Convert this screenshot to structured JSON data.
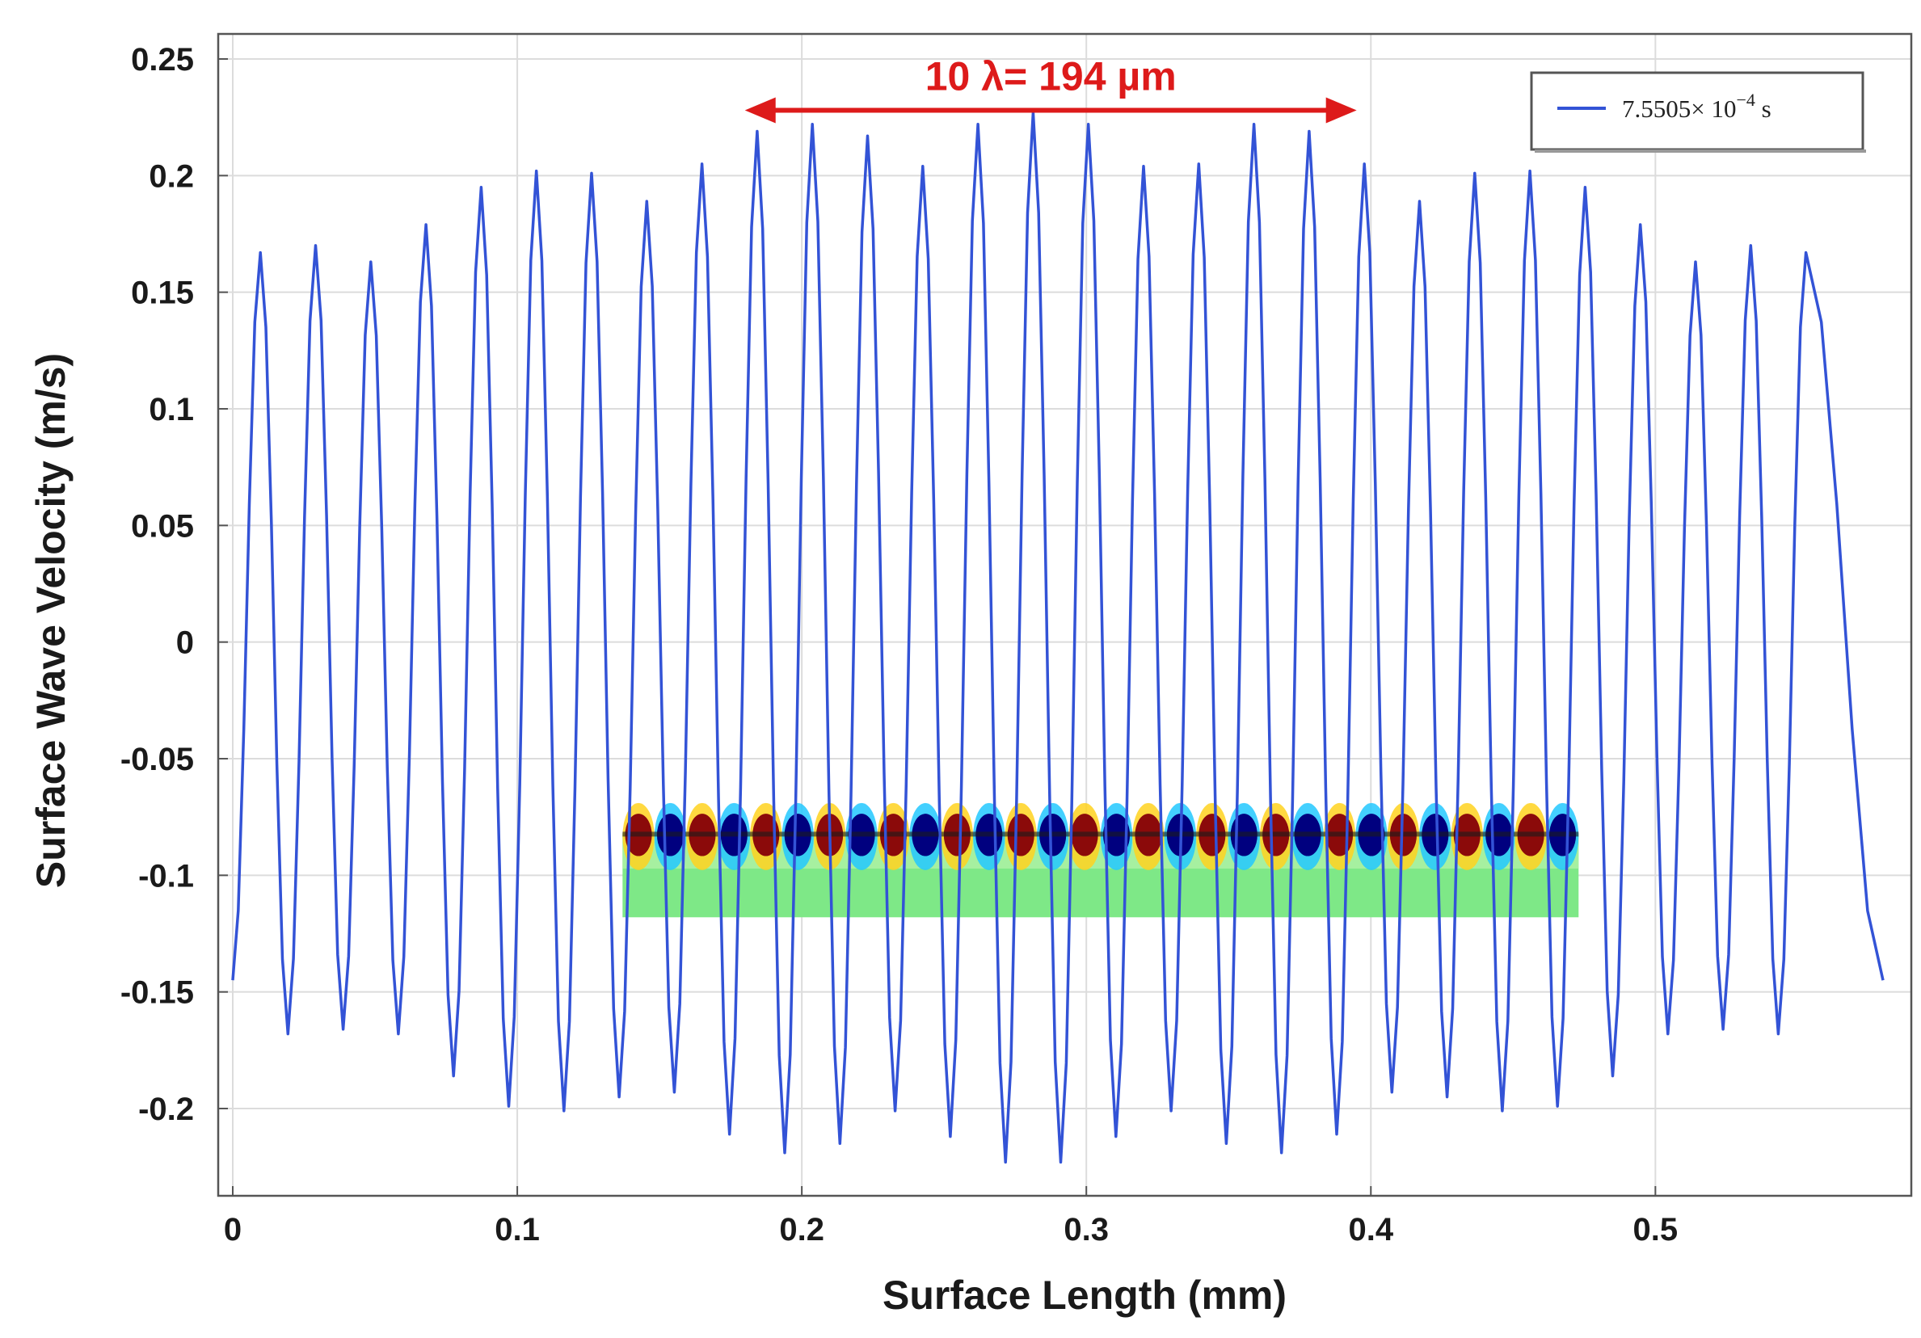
{
  "chart_data": {
    "type": "line",
    "title": "",
    "xlabel": "Surface Length (mm)",
    "ylabel": "Surface Wave Velocity (m/s)",
    "xlim": [
      0,
      0.58
    ],
    "ylim": [
      -0.23,
      0.25
    ],
    "grid": true,
    "x_ticks": [
      0,
      0.1,
      0.2,
      0.3,
      0.4,
      0.5
    ],
    "x_tick_labels": [
      "0",
      "0.1",
      "0.2",
      "0.3",
      "0.4",
      "0.5"
    ],
    "y_ticks": [
      -0.2,
      -0.15,
      -0.1,
      -0.05,
      0,
      0.05,
      0.1,
      0.15,
      0.2,
      0.25
    ],
    "y_tick_labels": [
      "-0.2",
      "-0.15",
      "-0.1",
      "-0.05",
      "0",
      "0.05",
      "0.1",
      "0.15",
      "0.2",
      "0.25"
    ],
    "legend": {
      "placement": "top-right",
      "entries": [
        {
          "label_main": "7.5505×",
          "label_base": "10",
          "label_exp": "−4",
          "label_unit": "s",
          "color": "#3353d6"
        }
      ]
    },
    "series": [
      {
        "name": "7.5505×10^-4 s",
        "color": "#3353d6",
        "wavelength_mm": 0.0194,
        "x_start": 0,
        "x_end": 0.58,
        "start_value": -0.145,
        "peaks": [
          0.167,
          0.17,
          0.163,
          0.179,
          0.195,
          0.202,
          0.201,
          0.189,
          0.205,
          0.219,
          0.222,
          0.217,
          0.204,
          0.222,
          0.227,
          0.222,
          0.204,
          0.205,
          0.222,
          0.219,
          0.205,
          0.189,
          0.201,
          0.202,
          0.195,
          0.179,
          0.163,
          0.17,
          0.167
        ],
        "troughs": [
          -0.168,
          -0.166,
          -0.168,
          -0.186,
          -0.199,
          -0.201,
          -0.195,
          -0.193,
          -0.211,
          -0.219,
          -0.215,
          -0.201,
          -0.212,
          -0.223,
          -0.223,
          -0.212,
          -0.201,
          -0.215,
          -0.219,
          -0.211,
          -0.193,
          -0.195,
          -0.201,
          -0.199,
          -0.186,
          -0.168,
          -0.166,
          -0.168
        ],
        "end_value": -0.145
      }
    ],
    "annotations": [
      {
        "text": "10 λ= 194 µm",
        "type": "double-arrow",
        "x_from": 0.18,
        "x_to": 0.395,
        "y": 0.228,
        "color": "#dd1a1a"
      }
    ],
    "inset": {
      "description_none": "",
      "x_from": 0.137,
      "x_to": 0.473,
      "y_top": -0.082,
      "y_bottom": -0.118,
      "cycles": 15,
      "colors": {
        "positive": "#8b0a0a",
        "negative": "#00007f",
        "near_pos": "#ffd21f",
        "near_neg": "#22c8ff",
        "field": "#7ee887"
      }
    }
  }
}
